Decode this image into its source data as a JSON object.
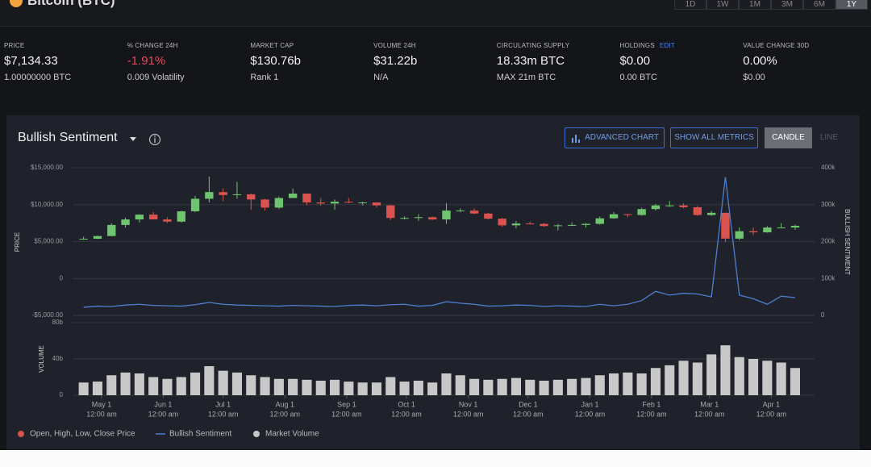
{
  "header": {
    "title": "Bitcoin (BTC)",
    "ranges": [
      "1D",
      "1W",
      "1M",
      "3M",
      "6M",
      "1Y"
    ]
  },
  "stats": [
    {
      "label": "PRICE",
      "value": "$7,134.33",
      "sub": "1.00000000 BTC"
    },
    {
      "label": "% CHANGE 24H",
      "value": "-1.91%",
      "sub": "0.009 Volatility",
      "value_color": "#e8465d"
    },
    {
      "label": "MARKET CAP",
      "value": "$130.76b",
      "sub": "Rank 1"
    },
    {
      "label": "VOLUME 24H",
      "value": "$31.22b",
      "sub": "N/A"
    },
    {
      "label": "CIRCULATING SUPPLY",
      "value": "18.33m BTC",
      "sub": "MAX 21m BTC"
    },
    {
      "label": "HOLDINGS",
      "action": "EDIT",
      "value": "$0.00",
      "sub": "0.00 BTC"
    },
    {
      "label": "VALUE CHANGE 30D",
      "value": "0.00%",
      "sub": "$0.00"
    }
  ],
  "panel": {
    "metric": "Bullish Sentiment",
    "buttons": [
      "ADVANCED CHART",
      "SHOW ALL METRICS"
    ],
    "modes": [
      "CANDLE",
      "LINE"
    ]
  },
  "chart_data": [
    {
      "type": "candlestick",
      "name": "Open, High, Low, Close Price",
      "y_label": "PRICE",
      "y2_label": "BULLISH SENTIMENT",
      "up_color": "#6fc46f",
      "down_color": "#d9534f",
      "grid": true,
      "ylim": [
        -5000,
        15000
      ],
      "yticks": [
        {
          "value": -5000,
          "label": "-$5,000.00"
        },
        0,
        {
          "value": 5000,
          "label": "$5,000.00"
        },
        {
          "value": 10000,
          "label": "$10,000.00"
        },
        {
          "value": 15000,
          "label": "$15,000.00"
        }
      ],
      "y2lim": [
        0,
        400000
      ],
      "y2ticks": [
        0,
        {
          "value": 100000,
          "label": "100k"
        },
        {
          "value": 200000,
          "label": "200k"
        },
        {
          "value": 300000,
          "label": "300k"
        },
        {
          "value": 400000,
          "label": "400k"
        }
      ],
      "open": [
        5300,
        5380,
        5750,
        7250,
        8000,
        8650,
        8000,
        7700,
        9100,
        10800,
        11700,
        11300,
        11400,
        10700,
        9600,
        10900,
        11500,
        10300,
        10150,
        10400,
        10300,
        10300,
        9900,
        8200,
        8200,
        8300,
        8000,
        9200,
        9200,
        8800,
        8100,
        7200,
        7450,
        7400,
        7100,
        7200,
        7250,
        7400,
        8150,
        8700,
        8600,
        9400,
        9900,
        9900,
        9650,
        8600,
        8900,
        5400,
        6400,
        6250,
        6900,
        6900
      ],
      "high": [
        5650,
        5800,
        7500,
        8250,
        8700,
        9000,
        8300,
        9200,
        11200,
        13800,
        12200,
        13100,
        11500,
        10800,
        11100,
        12200,
        11500,
        10900,
        10700,
        10900,
        10400,
        10300,
        10000,
        8400,
        8700,
        8400,
        10200,
        9500,
        9500,
        8900,
        8200,
        7800,
        7700,
        7500,
        7400,
        7600,
        7500,
        8400,
        9000,
        8750,
        9600,
        10100,
        10500,
        10200,
        9800,
        9150,
        8900,
        6900,
        6900,
        7100,
        7500,
        7300
      ],
      "low": [
        5250,
        5350,
        5700,
        6900,
        7600,
        8000,
        7500,
        7600,
        9000,
        10300,
        10500,
        10800,
        9300,
        9200,
        9400,
        10900,
        9900,
        9900,
        9300,
        10200,
        9900,
        9600,
        7900,
        8000,
        7800,
        7900,
        7400,
        9000,
        8700,
        8000,
        7000,
        6800,
        7300,
        7000,
        6500,
        7100,
        6900,
        7300,
        8100,
        8300,
        8500,
        9200,
        9700,
        9500,
        8500,
        8500,
        4900,
        5200,
        5900,
        6200,
        6800,
        6600
      ],
      "close": [
        5380,
        5750,
        7250,
        8000,
        8650,
        8000,
        7700,
        9100,
        10800,
        11700,
        11300,
        11400,
        10700,
        9600,
        10900,
        11500,
        10300,
        10150,
        10400,
        10300,
        10300,
        9900,
        8200,
        8200,
        8300,
        8000,
        9200,
        9200,
        8800,
        8100,
        7200,
        7450,
        7400,
        7100,
        7200,
        7250,
        7400,
        8150,
        8700,
        8600,
        9400,
        9900,
        9900,
        9650,
        8600,
        8900,
        5400,
        6400,
        6250,
        6900,
        6900,
        7134.33
      ],
      "series": [
        {
          "name": "Bullish Sentiment",
          "color": "#4f7fd1",
          "axis": "y2",
          "values": [
            22000,
            25000,
            24000,
            28000,
            30000,
            27000,
            26000,
            25000,
            29000,
            35000,
            30000,
            28000,
            27000,
            26000,
            25000,
            27000,
            26000,
            25000,
            24000,
            27000,
            28000,
            26000,
            29000,
            30000,
            25000,
            27000,
            37000,
            33000,
            30000,
            25000,
            26000,
            28000,
            27000,
            24000,
            26000,
            25000,
            24000,
            30000,
            26000,
            30000,
            40000,
            65000,
            55000,
            60000,
            58000,
            50000,
            375000,
            55000,
            45000,
            30000,
            52000,
            48000
          ]
        }
      ]
    },
    {
      "type": "bar",
      "y_label": "VOLUME",
      "grid": true,
      "ylim": [
        0,
        80
      ],
      "yticks": [
        0,
        {
          "value": 40,
          "label": "40b"
        },
        {
          "value": 80,
          "label": "80b"
        }
      ],
      "xticks": [
        {
          "value": 1.29,
          "label": "May 1"
        },
        {
          "value": 5.71,
          "label": "Jun 1"
        },
        {
          "value": 10,
          "label": "Jul 1"
        },
        {
          "value": 14.43,
          "label": "Aug 1"
        },
        {
          "value": 18.86,
          "label": "Sep 1"
        },
        {
          "value": 23.14,
          "label": "Oct 1"
        },
        {
          "value": 27.57,
          "label": "Nov 1"
        },
        {
          "value": 31.86,
          "label": "Dec 1"
        },
        {
          "value": 36.29,
          "label": "Jan 1"
        },
        {
          "value": 40.71,
          "label": "Feb 1"
        },
        {
          "value": 44.86,
          "label": "Mar 1"
        },
        {
          "value": 49.29,
          "label": "Apr 1"
        }
      ],
      "x_time_label": "12:00 am",
      "series": [
        {
          "name": "Market Volume",
          "color": "#c8c8c8",
          "values": [
            14,
            15,
            22,
            25,
            24,
            20,
            18,
            20,
            25,
            32,
            27,
            25,
            22,
            20,
            18,
            18,
            17,
            16,
            17,
            15,
            14,
            14,
            20,
            15,
            16,
            14,
            24,
            22,
            18,
            17,
            18,
            19,
            17,
            16,
            17,
            18,
            19,
            22,
            24,
            25,
            24,
            30,
            33,
            38,
            36,
            45,
            55,
            42,
            40,
            38,
            36,
            30
          ]
        }
      ]
    }
  ]
}
